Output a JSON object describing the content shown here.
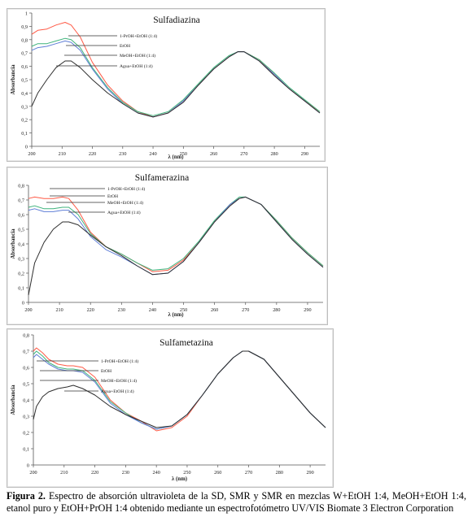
{
  "figure": {
    "caption_label": "Figura 2.",
    "caption_text": "Espectro de absorción ultravioleta de la SD, SMR y SMR en mezclas W+EtOH 1:4, MeOH+EtOH 1:4, etanol puro y EtOH+PrOH 1:4 obtenido mediante un espectrofotómetro UV/VIS Biomate 3 Electron Corporation"
  },
  "colors": {
    "propanol": "#ff5a46",
    "etoh": "#3fb37c",
    "meoh": "#5f7ed6",
    "agua": "#2e2e2e"
  },
  "chart_data": [
    {
      "type": "line",
      "title": "Sulfadiazina",
      "xlabel": "λ (nm)",
      "ylabel": "Absorbancia",
      "xlim": [
        200,
        295
      ],
      "ylim": [
        0,
        1
      ],
      "xticks": [
        200,
        210,
        220,
        230,
        240,
        250,
        260,
        270,
        280,
        290
      ],
      "yticks": [
        0,
        0.1,
        0.2,
        0.3,
        0.4,
        0.5,
        0.6,
        0.7,
        0.8,
        0.9,
        1
      ],
      "ytick_labels": [
        "0",
        "0,1",
        "0,2",
        "0,3",
        "0,4",
        "0,5",
        "0,6",
        "0,7",
        "0,8",
        "0,9",
        "1"
      ],
      "legend_placement": "labels with leader lines, upper left",
      "series": [
        {
          "name": "1-PrOH+EtOH (1:4)",
          "key": "propanol",
          "x": [
            200,
            202,
            205,
            208,
            211,
            213,
            216,
            220,
            225,
            230,
            235,
            240,
            245,
            250,
            255,
            260,
            265,
            268,
            270,
            275,
            280,
            285,
            290,
            295
          ],
          "y": [
            0.84,
            0.87,
            0.88,
            0.91,
            0.93,
            0.91,
            0.82,
            0.63,
            0.46,
            0.34,
            0.26,
            0.22,
            0.25,
            0.34,
            0.46,
            0.58,
            0.67,
            0.71,
            0.71,
            0.65,
            0.54,
            0.43,
            0.34,
            0.26
          ]
        },
        {
          "name": "EtOH",
          "key": "etoh",
          "x": [
            200,
            202,
            205,
            208,
            211,
            213,
            216,
            220,
            225,
            230,
            235,
            240,
            245,
            250,
            255,
            260,
            265,
            268,
            270,
            275,
            280,
            285,
            290,
            295
          ],
          "y": [
            0.75,
            0.77,
            0.77,
            0.79,
            0.81,
            0.8,
            0.74,
            0.59,
            0.44,
            0.33,
            0.26,
            0.23,
            0.26,
            0.35,
            0.47,
            0.59,
            0.68,
            0.71,
            0.71,
            0.65,
            0.55,
            0.44,
            0.35,
            0.26
          ]
        },
        {
          "name": "MeOH+EtOH (1:4)",
          "key": "meoh",
          "x": [
            200,
            202,
            205,
            208,
            211,
            213,
            216,
            220,
            225,
            230,
            235,
            240,
            245,
            250,
            255,
            260,
            265,
            268,
            270,
            275,
            280,
            285,
            290,
            295
          ],
          "y": [
            0.72,
            0.74,
            0.75,
            0.77,
            0.79,
            0.78,
            0.72,
            0.58,
            0.43,
            0.32,
            0.25,
            0.22,
            0.25,
            0.34,
            0.46,
            0.58,
            0.67,
            0.71,
            0.71,
            0.64,
            0.54,
            0.43,
            0.34,
            0.25
          ]
        },
        {
          "name": "Agua+EtOH (1:4)",
          "key": "agua",
          "x": [
            200,
            202,
            205,
            208,
            211,
            213,
            216,
            220,
            225,
            230,
            235,
            240,
            245,
            250,
            255,
            260,
            265,
            268,
            270,
            275,
            280,
            285,
            290,
            295
          ],
          "y": [
            0.3,
            0.4,
            0.5,
            0.59,
            0.64,
            0.64,
            0.59,
            0.5,
            0.4,
            0.32,
            0.25,
            0.22,
            0.25,
            0.33,
            0.46,
            0.58,
            0.67,
            0.71,
            0.71,
            0.64,
            0.53,
            0.43,
            0.34,
            0.25
          ]
        }
      ]
    },
    {
      "type": "line",
      "title": "Sulfamerazina",
      "xlabel": "λ (nm)",
      "ylabel": "Absorbancia",
      "xlim": [
        200,
        295
      ],
      "ylim": [
        0,
        0.8
      ],
      "xticks": [
        200,
        210,
        220,
        230,
        240,
        250,
        260,
        270,
        280,
        290
      ],
      "yticks": [
        0,
        0.1,
        0.2,
        0.3,
        0.4,
        0.5,
        0.6,
        0.7,
        0.8
      ],
      "ytick_labels": [
        "0",
        "0,1",
        "0,2",
        "0,3",
        "0,4",
        "0,5",
        "0,6",
        "0,7",
        "0,8"
      ],
      "legend_placement": "labels with leader lines, upper left",
      "series": [
        {
          "name": "1-PrOH+EtOH (1:4)",
          "key": "propanol",
          "x": [
            200,
            202,
            205,
            208,
            211,
            213,
            216,
            220,
            225,
            230,
            235,
            240,
            245,
            250,
            255,
            260,
            265,
            268,
            270,
            275,
            280,
            285,
            290,
            295
          ],
          "y": [
            0.71,
            0.72,
            0.71,
            0.71,
            0.72,
            0.71,
            0.63,
            0.48,
            0.38,
            0.33,
            0.27,
            0.21,
            0.22,
            0.29,
            0.41,
            0.55,
            0.67,
            0.71,
            0.72,
            0.67,
            0.56,
            0.44,
            0.34,
            0.25
          ]
        },
        {
          "name": "EtOH",
          "key": "etoh",
          "x": [
            200,
            202,
            205,
            208,
            211,
            213,
            216,
            220,
            225,
            230,
            235,
            240,
            245,
            250,
            255,
            260,
            265,
            268,
            270,
            275,
            280,
            285,
            290,
            295
          ],
          "y": [
            0.65,
            0.66,
            0.64,
            0.64,
            0.65,
            0.65,
            0.6,
            0.47,
            0.38,
            0.33,
            0.27,
            0.22,
            0.23,
            0.3,
            0.42,
            0.56,
            0.67,
            0.72,
            0.72,
            0.67,
            0.56,
            0.44,
            0.34,
            0.25
          ]
        },
        {
          "name": "MeOH+EtOH (1:4)",
          "key": "meoh",
          "x": [
            200,
            202,
            205,
            208,
            211,
            213,
            216,
            220,
            225,
            230,
            235,
            240,
            245,
            250,
            255,
            260,
            265,
            268,
            270,
            275,
            280,
            285,
            290,
            295
          ],
          "y": [
            0.63,
            0.64,
            0.62,
            0.62,
            0.63,
            0.63,
            0.57,
            0.45,
            0.36,
            0.31,
            0.25,
            0.19,
            0.2,
            0.28,
            0.41,
            0.55,
            0.67,
            0.71,
            0.72,
            0.67,
            0.55,
            0.43,
            0.33,
            0.24
          ]
        },
        {
          "name": "Agua+EtOH (1:4)",
          "key": "agua",
          "x": [
            200,
            202,
            205,
            208,
            211,
            213,
            216,
            220,
            225,
            230,
            235,
            240,
            245,
            250,
            255,
            260,
            265,
            268,
            270,
            275,
            280,
            285,
            290,
            295
          ],
          "y": [
            0.05,
            0.27,
            0.41,
            0.5,
            0.55,
            0.55,
            0.53,
            0.46,
            0.38,
            0.32,
            0.25,
            0.19,
            0.2,
            0.28,
            0.41,
            0.55,
            0.66,
            0.71,
            0.72,
            0.67,
            0.55,
            0.43,
            0.33,
            0.24
          ]
        }
      ]
    },
    {
      "type": "line",
      "title": "Sulfametazina",
      "xlabel": "λ (nm)",
      "ylabel": "Absorbancia",
      "xlim": [
        200,
        295
      ],
      "ylim": [
        0,
        0.8
      ],
      "xticks": [
        200,
        210,
        220,
        230,
        240,
        250,
        260,
        270,
        280,
        290
      ],
      "yticks": [
        0,
        0.1,
        0.2,
        0.3,
        0.4,
        0.5,
        0.6,
        0.7,
        0.8
      ],
      "ytick_labels": [
        "0",
        "0,1",
        "0,2",
        "0,3",
        "0,4",
        "0,5",
        "0,6",
        "0,7",
        "0,8"
      ],
      "legend_placement": "labels with leader lines, upper left",
      "series": [
        {
          "name": "1-PrOH+EtOH (1:4)",
          "key": "propanol",
          "x": [
            200,
            201,
            203,
            205,
            208,
            211,
            213,
            216,
            220,
            225,
            230,
            235,
            240,
            245,
            250,
            255,
            260,
            265,
            268,
            270,
            275,
            280,
            285,
            290,
            295
          ],
          "y": [
            0.7,
            0.72,
            0.69,
            0.65,
            0.62,
            0.61,
            0.61,
            0.6,
            0.54,
            0.4,
            0.32,
            0.27,
            0.21,
            0.23,
            0.3,
            0.43,
            0.56,
            0.66,
            0.7,
            0.7,
            0.65,
            0.54,
            0.43,
            0.32,
            0.23
          ]
        },
        {
          "name": "EtOH",
          "key": "etoh",
          "x": [
            200,
            201,
            203,
            205,
            208,
            211,
            213,
            216,
            220,
            225,
            230,
            235,
            240,
            245,
            250,
            255,
            260,
            265,
            268,
            270,
            275,
            280,
            285,
            290,
            295
          ],
          "y": [
            0.68,
            0.7,
            0.67,
            0.63,
            0.6,
            0.59,
            0.59,
            0.58,
            0.52,
            0.39,
            0.32,
            0.26,
            0.22,
            0.24,
            0.31,
            0.43,
            0.56,
            0.66,
            0.7,
            0.7,
            0.65,
            0.54,
            0.43,
            0.32,
            0.23
          ]
        },
        {
          "name": "MeOH+EtOH (1:4)",
          "key": "meoh",
          "x": [
            200,
            201,
            203,
            205,
            208,
            211,
            213,
            216,
            220,
            225,
            230,
            235,
            240,
            245,
            250,
            255,
            260,
            265,
            268,
            270,
            275,
            280,
            285,
            290,
            295
          ],
          "y": [
            0.66,
            0.68,
            0.65,
            0.62,
            0.59,
            0.58,
            0.58,
            0.57,
            0.51,
            0.38,
            0.31,
            0.26,
            0.22,
            0.24,
            0.31,
            0.43,
            0.56,
            0.66,
            0.7,
            0.7,
            0.65,
            0.54,
            0.43,
            0.32,
            0.23
          ]
        },
        {
          "name": "Agua+EtOH (1:4)",
          "key": "agua",
          "x": [
            200,
            201,
            203,
            205,
            208,
            211,
            213,
            216,
            220,
            225,
            230,
            235,
            240,
            245,
            250,
            255,
            260,
            265,
            268,
            270,
            275,
            280,
            285,
            290,
            295
          ],
          "y": [
            0.28,
            0.36,
            0.42,
            0.45,
            0.47,
            0.48,
            0.49,
            0.47,
            0.43,
            0.36,
            0.31,
            0.27,
            0.23,
            0.24,
            0.31,
            0.43,
            0.56,
            0.66,
            0.7,
            0.7,
            0.65,
            0.54,
            0.43,
            0.32,
            0.23
          ]
        }
      ]
    }
  ]
}
